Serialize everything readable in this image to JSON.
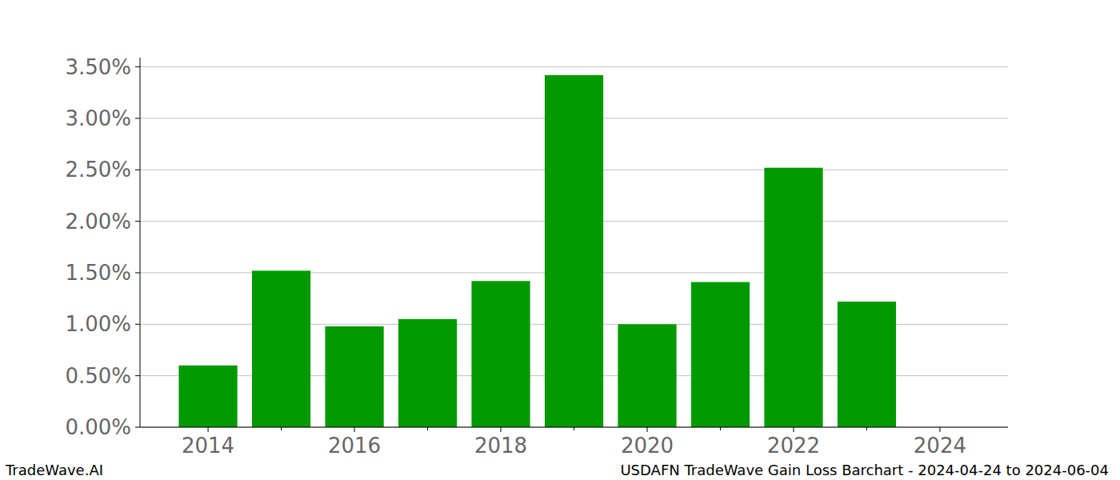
{
  "chart_data": {
    "type": "bar",
    "title": "USDAFN TradeWave Gain Loss Barchart - 2024-04-24 to 2024-06-04",
    "source": "TradeWave.AI",
    "x": [
      2014,
      2015,
      2016,
      2017,
      2018,
      2019,
      2020,
      2021,
      2022,
      2023
    ],
    "values": [
      0.6,
      1.52,
      0.98,
      1.05,
      1.42,
      3.42,
      1.0,
      1.41,
      2.52,
      1.22
    ],
    "color": "#009900",
    "xlim": [
      2013.07,
      2024.93
    ],
    "xticks": [
      2014,
      2016,
      2018,
      2020,
      2022,
      2024
    ],
    "ylim": [
      0,
      3.59
    ],
    "yticks": [
      {
        "value": 0,
        "label": "0.00%"
      },
      {
        "value": 0.5,
        "label": "0.50%"
      },
      {
        "value": 1,
        "label": "1.00%"
      },
      {
        "value": 1.5,
        "label": "1.50%"
      },
      {
        "value": 2,
        "label": "2.00%"
      },
      {
        "value": 2.5,
        "label": "2.50%"
      },
      {
        "value": 3,
        "label": "3.00%"
      },
      {
        "value": 3.5,
        "label": "3.50%"
      }
    ],
    "grid": true
  }
}
